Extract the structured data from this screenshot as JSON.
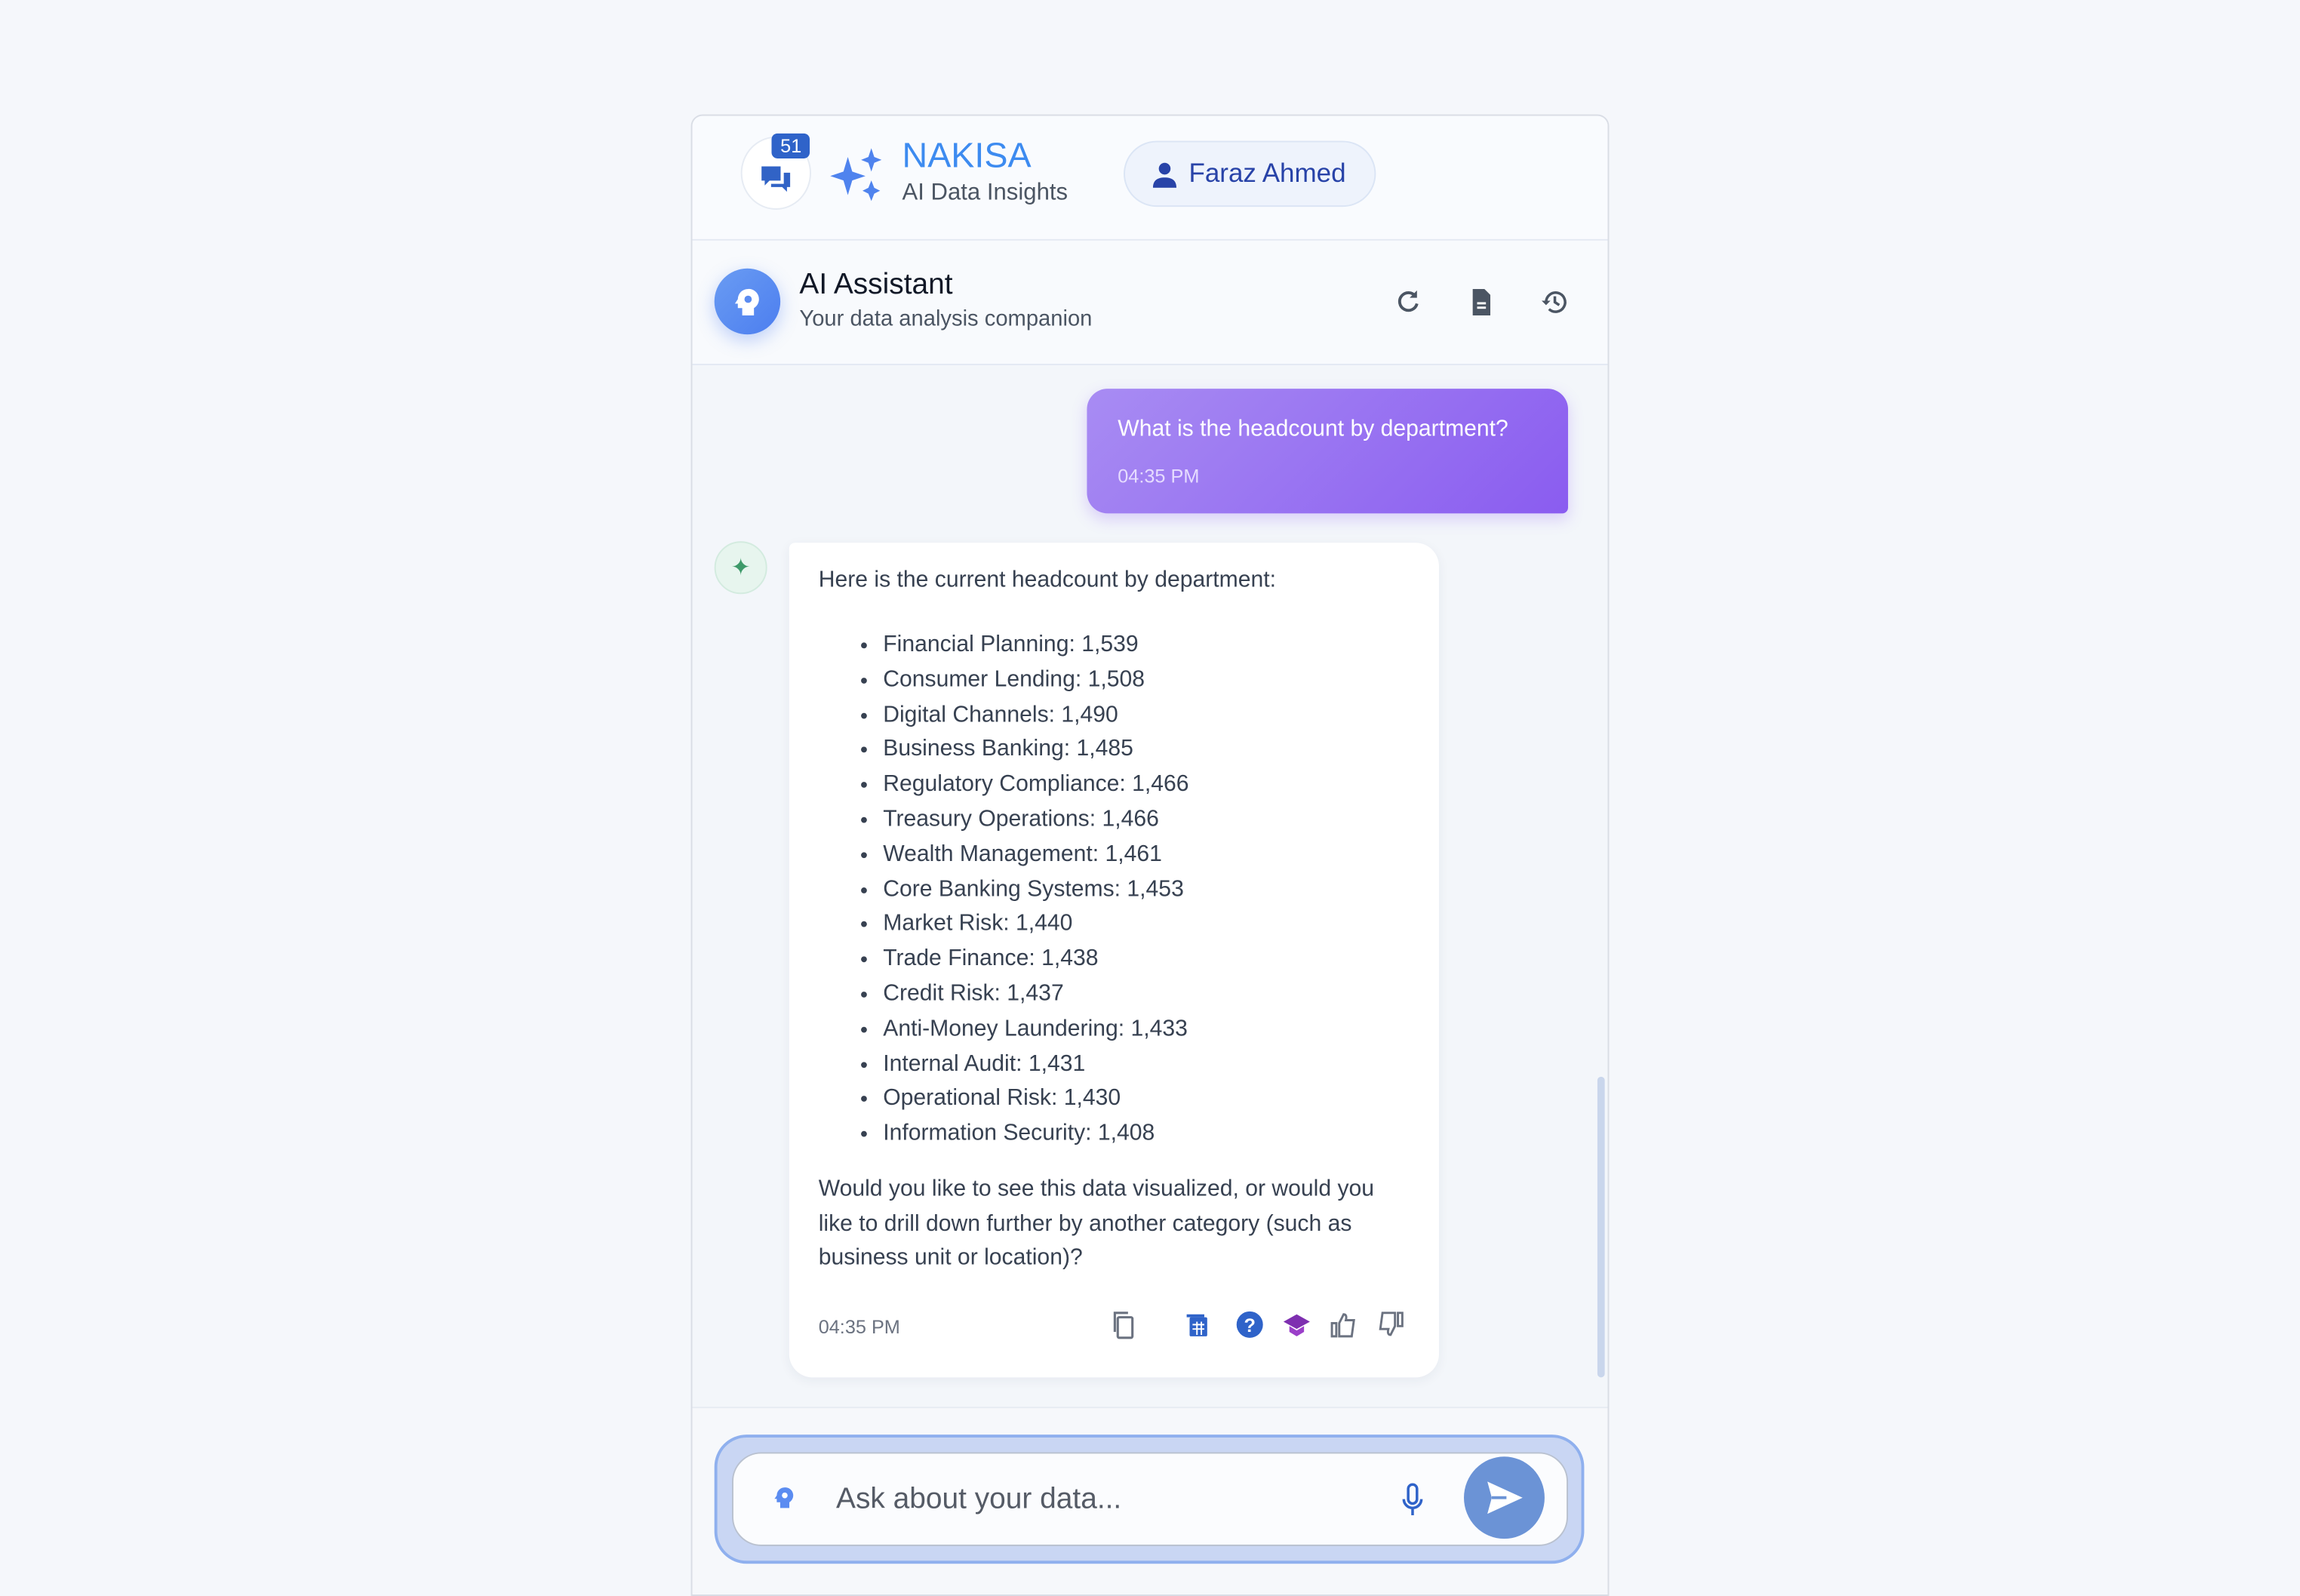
{
  "header": {
    "notification_count": "51",
    "brand": "NAKISA",
    "subtitle": "AI Data Insights",
    "user_name": "Faraz Ahmed"
  },
  "assistant": {
    "title": "AI Assistant",
    "subtitle": "Your data analysis companion",
    "tools": [
      "refresh-icon",
      "document-icon",
      "history-icon"
    ]
  },
  "messages": {
    "user": {
      "text": "What is the headcount by department?",
      "time": "04:35 PM"
    },
    "bot": {
      "intro": "Here is the current headcount by department:",
      "items": [
        "Financial Planning: 1,539",
        "Consumer Lending: 1,508",
        "Digital Channels: 1,490",
        "Business Banking: 1,485",
        "Regulatory Compliance: 1,466",
        "Treasury Operations: 1,466",
        "Wealth Management: 1,461",
        "Core Banking Systems: 1,453",
        "Market Risk: 1,440",
        "Trade Finance: 1,438",
        "Credit Risk: 1,437",
        "Anti-Money Laundering: 1,433",
        "Internal Audit: 1,431",
        "Operational Risk: 1,430",
        "Information Security: 1,408"
      ],
      "outro": "Would you like to see this data visualized, or would you like to drill down further by another category (such as business unit or location)?",
      "time": "04:35 PM",
      "actions": [
        "copy-icon",
        "table-icon",
        "help-icon",
        "learn-icon",
        "thumbs-up-icon",
        "thumbs-down-icon"
      ]
    }
  },
  "input": {
    "placeholder": "Ask about your data...",
    "value": ""
  },
  "colors": {
    "brand": "#3d8bf0",
    "user_bubble": "#8a5cf0",
    "send": "#6b93d6"
  }
}
